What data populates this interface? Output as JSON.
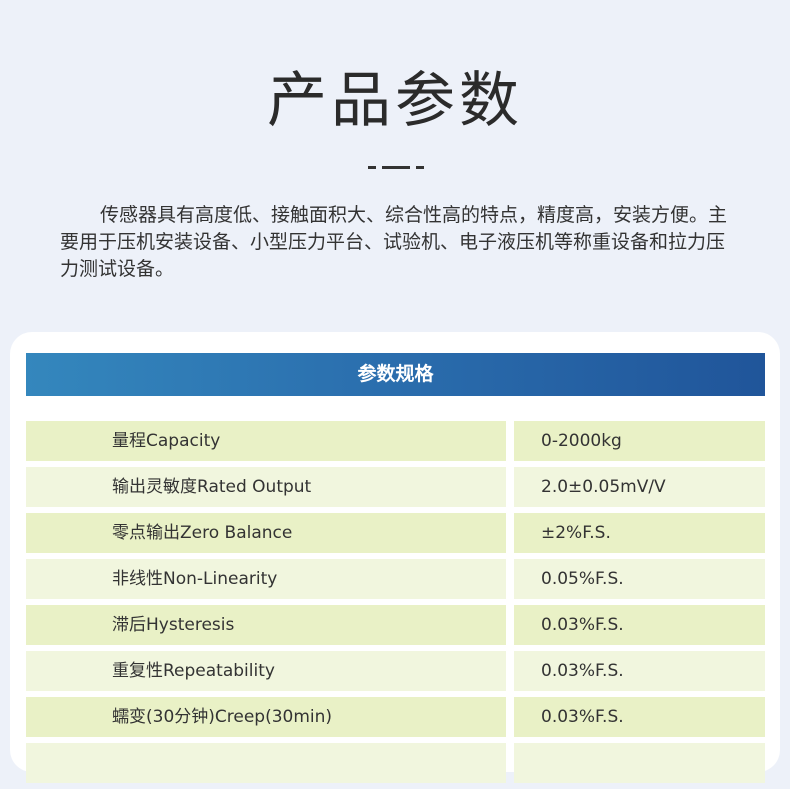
{
  "title": "产品参数",
  "intro": "传感器具有高度低、接触面积大、综合性高的特点，精度高，安装方便。主要用于压机安装设备、小型压力平台、试验机、电子液压机等称重设备和拉力压力测试设备。",
  "table": {
    "header": "参数规格",
    "rows": [
      {
        "name": "量程Capacity",
        "value": "0-2000kg"
      },
      {
        "name": "输出灵敏度Rated Output",
        "value": "2.0±0.05mV/V"
      },
      {
        "name": "零点输出Zero Balance",
        "value": "±2%F.S."
      },
      {
        "name": "非线性Non-Linearity",
        "value": "0.05%F.S."
      },
      {
        "name": "滞后Hysteresis",
        "value": "0.03%F.S."
      },
      {
        "name": "重复性Repeatability",
        "value": "0.03%F.S."
      },
      {
        "name": "蠕变(30分钟)Creep(30min)",
        "value": "0.03%F.S."
      },
      {
        "name": "",
        "value": ""
      }
    ]
  }
}
